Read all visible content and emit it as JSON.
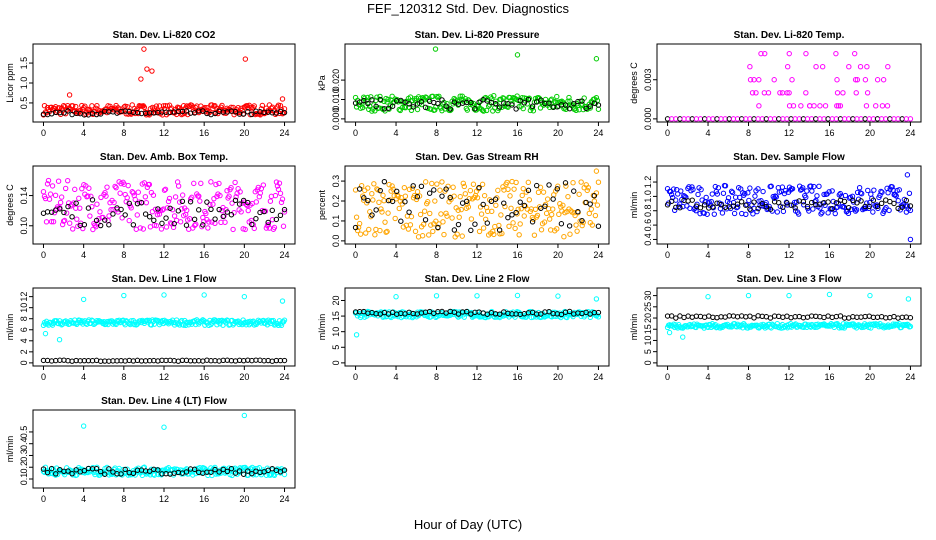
{
  "title": "FEF_120312  Std. Dev. Diagnostics",
  "xlabel": "Hour of Day (UTC)",
  "colors": {
    "red": "#ff0000",
    "green": "#00cc00",
    "magenta": "#ff00ff",
    "orange": "#ffa500",
    "blue": "#0000ff",
    "cyan": "#00ffff",
    "black": "#000000"
  },
  "chart_data": [
    {
      "type": "scatter",
      "title": "Stan. Dev. Li-820 CO2",
      "ylabel": "Licor ppm",
      "xlim": [
        0,
        24
      ],
      "ylim": [
        0.1,
        1.9
      ],
      "xticks": [
        "0",
        "4",
        "8",
        "12",
        "16",
        "20",
        "24"
      ],
      "yticks": [
        "0.5",
        "1.0",
        "1.5"
      ],
      "ytick_values": [
        0.5,
        1.0,
        1.5
      ],
      "color": "red",
      "band": {
        "low": 0.2,
        "high": 0.45
      },
      "black": {
        "low": 0.2,
        "high": 0.3
      },
      "outliers": [
        [
          10.0,
          1.85
        ],
        [
          10.3,
          1.35
        ],
        [
          10.8,
          1.3
        ],
        [
          20.1,
          1.6
        ],
        [
          2.6,
          0.7
        ],
        [
          9.7,
          1.1
        ],
        [
          23.8,
          0.6
        ]
      ]
    },
    {
      "type": "scatter",
      "title": "Stan. Dev. Li-820 Pressure",
      "ylabel": "kPa",
      "xlim": [
        0,
        24
      ],
      "ylim": [
        0,
        0.037
      ],
      "xticks": [
        "0",
        "4",
        "8",
        "12",
        "16",
        "20",
        "24"
      ],
      "yticks": [
        "0.000",
        "0.010",
        "0.020"
      ],
      "ytick_values": [
        0.0,
        0.01,
        0.02
      ],
      "color": "green",
      "band": {
        "low": 0.004,
        "high": 0.012
      },
      "black": {
        "low": 0.005,
        "high": 0.01
      },
      "outliers": [
        [
          7.9,
          0.036
        ],
        [
          16.0,
          0.033
        ],
        [
          23.8,
          0.031
        ]
      ]
    },
    {
      "type": "scatter",
      "title": "Stan. Dev. Li-820 Temp.",
      "ylabel": "degrees C",
      "xlim": [
        0,
        24
      ],
      "ylim": [
        0,
        0.0055
      ],
      "xticks": [
        "0",
        "4",
        "8",
        "12",
        "16",
        "20",
        "24"
      ],
      "yticks": [
        "0.000",
        "0.003"
      ],
      "ytick_values": [
        0.0,
        0.003
      ],
      "color": "magenta",
      "levels": [
        0,
        0.001,
        0.002,
        0.003,
        0.004,
        0.005
      ]
    },
    {
      "type": "scatter",
      "title": "Stan. Dev. Amb. Box Temp.",
      "ylabel": "degrees C",
      "xlim": [
        0,
        24
      ],
      "ylim": [
        0.08,
        0.175
      ],
      "xticks": [
        "0",
        "4",
        "8",
        "12",
        "16",
        "20",
        "24"
      ],
      "yticks": [
        "0.10",
        "0.14"
      ],
      "ytick_values": [
        0.1,
        0.14
      ],
      "color": "magenta",
      "band": {
        "low": 0.095,
        "high": 0.16
      },
      "black": {
        "low": 0.1,
        "high": 0.135
      },
      "outliers": []
    },
    {
      "type": "scatter",
      "title": "Stan. Dev. Gas Stream RH",
      "ylabel": "percent",
      "xlim": [
        0,
        24
      ],
      "ylim": [
        0.0,
        0.36
      ],
      "xticks": [
        "0",
        "4",
        "8",
        "12",
        "16",
        "20",
        "24"
      ],
      "yticks": [
        "0.0",
        "0.1",
        "0.2",
        "0.3"
      ],
      "ytick_values": [
        0.0,
        0.1,
        0.2,
        0.3
      ],
      "color": "orange",
      "band": {
        "low": 0.02,
        "high": 0.3
      },
      "black": {
        "low": 0.05,
        "high": 0.3
      },
      "outliers": [
        [
          23.8,
          0.35
        ]
      ]
    },
    {
      "type": "scatter",
      "title": "Stan. Dev. Sample Flow",
      "ylabel": "ml/min",
      "xlim": [
        0,
        24
      ],
      "ylim": [
        0.38,
        1.38
      ],
      "xticks": [
        "0",
        "4",
        "8",
        "12",
        "16",
        "20",
        "24"
      ],
      "yticks": [
        "0.4",
        "0.6",
        "0.8",
        "1.0",
        "1.2"
      ],
      "ytick_values": [
        0.4,
        0.6,
        0.8,
        1.0,
        1.2
      ],
      "color": "blue",
      "band": {
        "low": 0.75,
        "high": 1.15
      },
      "black": {
        "low": 0.82,
        "high": 0.95
      },
      "outliers": [
        [
          24.0,
          0.4
        ],
        [
          23.7,
          1.3
        ]
      ]
    },
    {
      "type": "scatter",
      "title": "Stan. Dev. Line 1 Flow",
      "ylabel": "ml/min",
      "xlim": [
        0,
        24
      ],
      "ylim": [
        0,
        13
      ],
      "xticks": [
        "0",
        "4",
        "8",
        "12",
        "16",
        "20",
        "24"
      ],
      "yticks": [
        "0",
        "2",
        "4",
        "6",
        "8",
        "10",
        "12"
      ],
      "ytick_values": [
        0,
        2,
        4,
        6,
        8,
        10,
        12
      ],
      "color": "cyan",
      "band": {
        "low": 6.8,
        "high": 7.8
      },
      "black": {
        "low": 0.3,
        "high": 0.5
      },
      "outliers": [
        [
          4.0,
          11.5
        ],
        [
          8.0,
          12.2
        ],
        [
          12.0,
          12.3
        ],
        [
          16.0,
          12.3
        ],
        [
          20.0,
          12.0
        ],
        [
          23.8,
          11.2
        ],
        [
          0.2,
          5.3
        ],
        [
          1.6,
          4.2
        ]
      ]
    },
    {
      "type": "scatter",
      "title": "Stan. Dev. Line 2 Flow",
      "ylabel": "ml/min",
      "xlim": [
        0,
        24
      ],
      "ylim": [
        0,
        23
      ],
      "xticks": [
        "0",
        "4",
        "8",
        "12",
        "16",
        "20",
        "24"
      ],
      "yticks": [
        "0",
        "5",
        "10",
        "15",
        "20"
      ],
      "ytick_values": [
        0,
        5,
        10,
        15,
        20
      ],
      "color": "cyan",
      "band": {
        "low": 14.5,
        "high": 16.5
      },
      "black": {
        "low": 15.5,
        "high": 16.5
      },
      "outliers": [
        [
          4.0,
          21.2
        ],
        [
          8.0,
          21.5
        ],
        [
          12.0,
          21.5
        ],
        [
          16.0,
          21.6
        ],
        [
          20.0,
          21.4
        ],
        [
          23.8,
          20.5
        ],
        [
          0.1,
          9.0
        ]
      ]
    },
    {
      "type": "scatter",
      "title": "Stan. Dev. Line 3 Flow",
      "ylabel": "ml/min",
      "xlim": [
        0,
        24
      ],
      "ylim": [
        0,
        32
      ],
      "xticks": [
        "0",
        "4",
        "8",
        "12",
        "16",
        "20",
        "24"
      ],
      "yticks": [
        "0",
        "5",
        "10",
        "15",
        "20",
        "25",
        "30"
      ],
      "ytick_values": [
        0,
        5,
        10,
        15,
        20,
        25,
        30
      ],
      "color": "cyan",
      "band": {
        "low": 15.5,
        "high": 17.5
      },
      "black": {
        "low": 20.0,
        "high": 21.0
      },
      "outliers": [
        [
          4.0,
          29.5
        ],
        [
          8.0,
          30.0
        ],
        [
          12.0,
          30.0
        ],
        [
          16.0,
          30.5
        ],
        [
          20.0,
          30.0
        ],
        [
          23.8,
          28.5
        ],
        [
          1.5,
          11.5
        ],
        [
          0.2,
          13.5
        ]
      ]
    },
    {
      "type": "scatter",
      "title": "Stan. Dev. Line 4 (LT) Flow",
      "ylabel": "ml/min",
      "xlim": [
        0,
        24
      ],
      "ylim": [
        0.05,
        0.66
      ],
      "xticks": [
        "0",
        "4",
        "8",
        "12",
        "16",
        "20",
        "24"
      ],
      "yticks": [
        "0.1",
        "0.2",
        "0.3",
        "0.4",
        "0.5"
      ],
      "ytick_values": [
        0.1,
        0.2,
        0.3,
        0.4,
        0.5
      ],
      "color": "cyan",
      "band": {
        "low": 0.13,
        "high": 0.2
      },
      "black": {
        "low": 0.14,
        "high": 0.19
      },
      "outliers": [
        [
          4.0,
          0.55
        ],
        [
          12.0,
          0.54
        ],
        [
          20.0,
          0.64
        ]
      ]
    }
  ]
}
